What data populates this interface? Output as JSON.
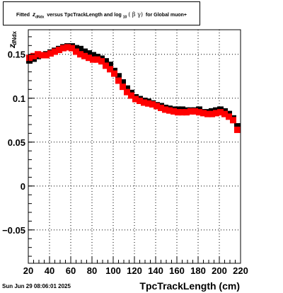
{
  "title": {
    "prefix": "Fitted",
    "symbol": "z",
    "symbol_sub": "dNdx",
    "middle": "versus TpcTrackLength and log",
    "log_sub": "10",
    "greek": "( β γ)",
    "suffix": "for Global muon+"
  },
  "footer": {
    "date": "Sun Jun 29 08:06:01 2025"
  },
  "chart_data": {
    "type": "scatter",
    "xlabel": "TpcTrackLength (cm)",
    "ylabel": "z",
    "ylabel_sub": "dNdx",
    "xlim": [
      20,
      220
    ],
    "ylim": [
      -0.088,
      0.178
    ],
    "x_ticks": [
      20,
      40,
      60,
      80,
      100,
      120,
      140,
      160,
      180,
      200,
      220
    ],
    "y_ticks": [
      -0.05,
      0,
      0.05,
      0.1,
      0.15
    ],
    "y_tick_labels": [
      "−0.05",
      "0",
      "0.05",
      "0.1",
      "0.15"
    ],
    "grid": true,
    "series": [
      {
        "color": "#000000",
        "x": [
          21,
          25,
          29,
          33,
          37,
          41,
          45,
          49,
          53,
          57,
          61,
          65,
          69,
          73,
          77,
          81,
          85,
          89,
          93,
          97,
          101,
          105,
          109,
          113,
          117,
          121,
          125,
          129,
          133,
          137,
          141,
          145,
          149,
          153,
          157,
          161,
          165,
          169,
          173,
          177,
          181,
          185,
          189,
          193,
          197,
          201,
          205,
          209,
          213,
          217
        ],
        "y": [
          0.143,
          0.145,
          0.148,
          0.149,
          0.15,
          0.152,
          0.154,
          0.156,
          0.158,
          0.159,
          0.159,
          0.157,
          0.156,
          0.153,
          0.151,
          0.149,
          0.147,
          0.145,
          0.142,
          0.138,
          0.131,
          0.125,
          0.118,
          0.111,
          0.106,
          0.101,
          0.099,
          0.097,
          0.096,
          0.094,
          0.092,
          0.091,
          0.089,
          0.088,
          0.087,
          0.087,
          0.087,
          0.086,
          0.086,
          0.086,
          0.087,
          0.084,
          0.084,
          0.085,
          0.086,
          0.087,
          0.085,
          0.082,
          0.077,
          0.068
        ]
      },
      {
        "color": "#ff0000",
        "x": [
          21,
          25,
          29,
          33,
          37,
          41,
          45,
          49,
          53,
          57,
          61,
          65,
          69,
          73,
          77,
          81,
          85,
          89,
          93,
          97,
          101,
          105,
          109,
          113,
          117,
          121,
          125,
          129,
          133,
          137,
          141,
          145,
          149,
          153,
          157,
          161,
          165,
          169,
          173,
          177,
          181,
          185,
          189,
          193,
          197,
          201,
          205,
          209,
          213,
          217
        ],
        "y": [
          0.146,
          0.148,
          0.15,
          0.149,
          0.149,
          0.151,
          0.153,
          0.155,
          0.157,
          0.158,
          0.157,
          0.153,
          0.15,
          0.148,
          0.146,
          0.144,
          0.144,
          0.142,
          0.137,
          0.133,
          0.128,
          0.12,
          0.113,
          0.107,
          0.103,
          0.099,
          0.097,
          0.095,
          0.094,
          0.093,
          0.091,
          0.089,
          0.087,
          0.086,
          0.085,
          0.084,
          0.084,
          0.084,
          0.085,
          0.085,
          0.084,
          0.083,
          0.082,
          0.082,
          0.083,
          0.084,
          0.082,
          0.079,
          0.075,
          0.064
        ]
      }
    ]
  }
}
